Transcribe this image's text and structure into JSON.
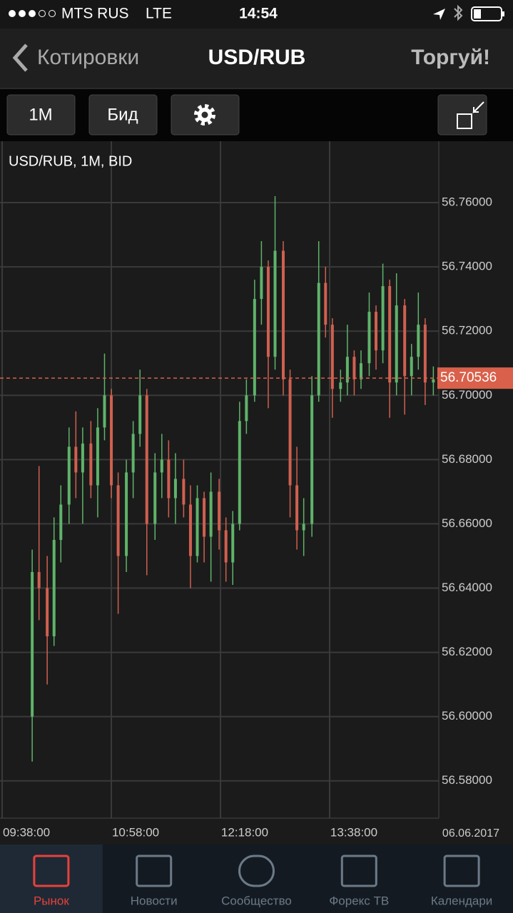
{
  "status_bar": {
    "carrier": "MTS RUS",
    "network": "LTE",
    "time": "14:54"
  },
  "nav": {
    "back": "Котировки",
    "title": "USD/RUB",
    "action": "Торгуй!"
  },
  "toolbar": {
    "timeframe": "1M",
    "price_type": "Бид"
  },
  "chart_data": {
    "type": "candlestick",
    "title": "USD/RUB, 1M, BID",
    "x": [
      600,
      605,
      611,
      616,
      621,
      627,
      632,
      637,
      643,
      648,
      653,
      658,
      663,
      669,
      674,
      679,
      684,
      690,
      695,
      700,
      705,
      711,
      716,
      721,
      726,
      731,
      737,
      742,
      747,
      752,
      757,
      763,
      768,
      773,
      778,
      784,
      789,
      794,
      799,
      805,
      810,
      815,
      820,
      826,
      831,
      836,
      841,
      847,
      852,
      857,
      862,
      867,
      873,
      878,
      883,
      888,
      894
    ],
    "open": [
      56.6,
      56.645,
      56.64,
      56.625,
      56.655,
      56.666,
      56.684,
      56.676,
      56.685,
      56.672,
      56.69,
      56.7,
      56.672,
      56.65,
      56.676,
      56.688,
      56.7,
      56.66,
      56.676,
      56.68,
      56.668,
      56.674,
      56.666,
      56.65,
      56.668,
      56.656,
      56.67,
      56.658,
      56.648,
      56.66,
      56.692,
      56.7,
      56.73,
      56.74,
      56.712,
      56.745,
      56.705,
      56.672,
      56.658,
      56.66,
      56.7,
      56.735,
      56.722,
      56.702,
      56.704,
      56.712,
      56.705,
      56.71,
      56.726,
      56.714,
      56.734,
      56.704,
      56.728,
      56.706,
      56.712,
      56.722,
      56.704
    ],
    "high": [
      56.652,
      56.678,
      56.65,
      56.662,
      56.672,
      56.69,
      56.695,
      56.69,
      56.692,
      56.696,
      56.713,
      56.702,
      56.676,
      56.68,
      56.692,
      56.708,
      56.702,
      56.682,
      56.688,
      56.686,
      56.682,
      56.68,
      56.672,
      56.672,
      56.67,
      56.676,
      56.674,
      56.662,
      56.664,
      56.698,
      56.705,
      56.736,
      56.748,
      56.742,
      56.762,
      56.748,
      56.708,
      56.684,
      56.668,
      56.706,
      56.748,
      56.74,
      56.724,
      56.708,
      56.722,
      56.714,
      56.714,
      56.732,
      56.728,
      56.741,
      56.736,
      56.738,
      56.73,
      56.716,
      56.732,
      56.724,
      56.709
    ],
    "low": [
      56.586,
      56.63,
      56.61,
      56.622,
      56.648,
      56.66,
      56.668,
      56.66,
      56.668,
      56.662,
      56.686,
      56.668,
      56.632,
      56.645,
      56.668,
      56.684,
      56.644,
      56.655,
      56.668,
      56.662,
      56.66,
      56.662,
      56.64,
      56.648,
      56.648,
      56.642,
      56.652,
      56.642,
      56.641,
      56.658,
      56.688,
      56.698,
      56.722,
      56.696,
      56.708,
      56.7,
      56.662,
      56.652,
      56.65,
      56.656,
      56.698,
      56.718,
      56.693,
      56.698,
      56.7,
      56.7,
      56.702,
      56.706,
      56.708,
      56.71,
      56.693,
      56.7,
      56.694,
      56.7,
      56.708,
      56.697,
      56.7
    ],
    "close": [
      56.645,
      56.64,
      56.625,
      56.655,
      56.666,
      56.684,
      56.676,
      56.685,
      56.672,
      56.69,
      56.7,
      56.672,
      56.65,
      56.676,
      56.688,
      56.7,
      56.66,
      56.676,
      56.68,
      56.668,
      56.674,
      56.666,
      56.65,
      56.668,
      56.656,
      56.67,
      56.658,
      56.648,
      56.66,
      56.692,
      56.7,
      56.73,
      56.74,
      56.712,
      56.745,
      56.705,
      56.672,
      56.658,
      56.66,
      56.7,
      56.735,
      56.722,
      56.702,
      56.704,
      56.712,
      56.705,
      56.71,
      56.726,
      56.714,
      56.734,
      56.704,
      56.728,
      56.706,
      56.712,
      56.722,
      56.704,
      56.705
    ],
    "up_color": "#5fb36a",
    "down_color": "#d0604f",
    "xlim": [
      576.4,
      898
    ],
    "xticks": [
      {
        "value": 578,
        "label": "09:38:00"
      },
      {
        "value": 658,
        "label": "10:58:00"
      },
      {
        "value": 738,
        "label": "12:18:00"
      },
      {
        "value": 818,
        "label": "13:38:00"
      }
    ],
    "ylim": [
      56.5684,
      56.7791
    ],
    "yticks": [
      {
        "value": 56.58,
        "label": "56.58000"
      },
      {
        "value": 56.6,
        "label": "56.60000"
      },
      {
        "value": 56.62,
        "label": "56.62000"
      },
      {
        "value": 56.64,
        "label": "56.64000"
      },
      {
        "value": 56.66,
        "label": "56.66000"
      },
      {
        "value": 56.68,
        "label": "56.68000"
      },
      {
        "value": 56.7,
        "label": "56.70000"
      },
      {
        "value": 56.72,
        "label": "56.72000"
      },
      {
        "value": 56.74,
        "label": "56.74000"
      },
      {
        "value": 56.76,
        "label": "56.76000"
      }
    ],
    "last_price": 56.70536,
    "last_price_color": "#d9604a",
    "date": "06.06.2017",
    "grid": true
  },
  "tabs": [
    {
      "label": "Рынок",
      "active": true
    },
    {
      "label": "Новости",
      "active": false
    },
    {
      "label": "Сообщество",
      "active": false
    },
    {
      "label": "Форекс ТВ",
      "active": false
    },
    {
      "label": "Календари",
      "active": false
    }
  ]
}
